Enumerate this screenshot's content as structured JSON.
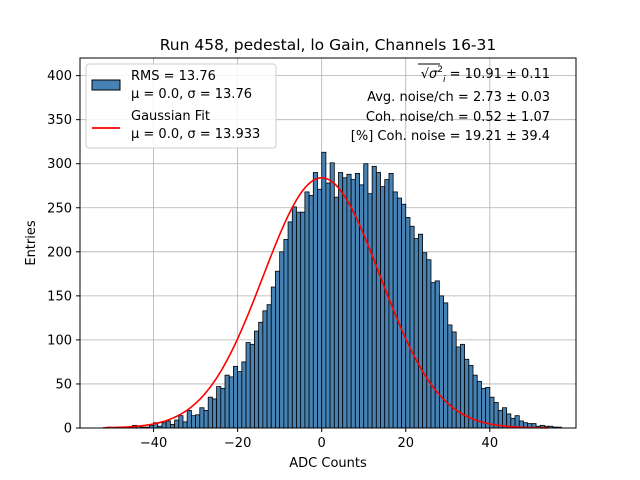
{
  "chart_data": {
    "type": "bar",
    "title": "Run 458, pedestal, lo Gain, Channels 16-31",
    "xlabel": "ADC Counts",
    "ylabel": "Entries",
    "xlim": [
      -57.5,
      60.5
    ],
    "ylim": [
      0,
      420
    ],
    "xticks": [
      -40,
      -20,
      0,
      20,
      40
    ],
    "yticks": [
      0,
      50,
      100,
      150,
      200,
      250,
      300,
      350,
      400
    ],
    "grid": true,
    "histogram": {
      "bin_width": 1.0,
      "bin_start": -51,
      "bar_color": "#4682b4",
      "edge_color": "#000000",
      "values": [
        1,
        0,
        1,
        0,
        1,
        1,
        3,
        2,
        1,
        1,
        3,
        6,
        2,
        6,
        8,
        4,
        9,
        14,
        7,
        20,
        14,
        15,
        23,
        20,
        35,
        33,
        47,
        45,
        60,
        58,
        70,
        64,
        75,
        97,
        95,
        110,
        120,
        133,
        140,
        160,
        178,
        200,
        214,
        234,
        251,
        245,
        245,
        268,
        264,
        290,
        271,
        313,
        278,
        301,
        262,
        290,
        284,
        288,
        282,
        289,
        276,
        300,
        266,
        297,
        290,
        274,
        282,
        289,
        268,
        261,
        254,
        239,
        229,
        215,
        220,
        199,
        191,
        165,
        167,
        150,
        142,
        117,
        109,
        92,
        95,
        78,
        71,
        60,
        53,
        45,
        46,
        35,
        29,
        20,
        23,
        16,
        11,
        14,
        8,
        6,
        5,
        5,
        2,
        3,
        2,
        2,
        1,
        1
      ]
    },
    "series": [
      {
        "name": "Gaussian Fit",
        "kind": "line",
        "color": "#ff0000",
        "mu": 0.0,
        "sigma": 13.933,
        "amplitude": 284,
        "x_range": [
          -52,
          54
        ]
      }
    ],
    "legend": {
      "placement": "top-left",
      "entries": [
        {
          "kind": "patch",
          "color": "#4682b4",
          "line1": "RMS = 13.76",
          "line2": "μ = 0.0, σ = 13.76"
        },
        {
          "kind": "line",
          "color": "#ff0000",
          "line1": "Gaussian Fit",
          "line2": "μ = 0.0, σ = 13.933"
        }
      ]
    },
    "annotations": {
      "placement": "top-right",
      "lines": [
        {
          "radical": "√",
          "sigma": "σ",
          "sup": "2",
          "sub": "i",
          "rest": " = 10.91 ± 0.11"
        },
        "Avg. noise/ch = 2.73 ± 0.03",
        "Coh. noise/ch = 0.52 ± 1.07",
        "[%] Coh. noise = 19.21 ± 39.4"
      ]
    }
  }
}
